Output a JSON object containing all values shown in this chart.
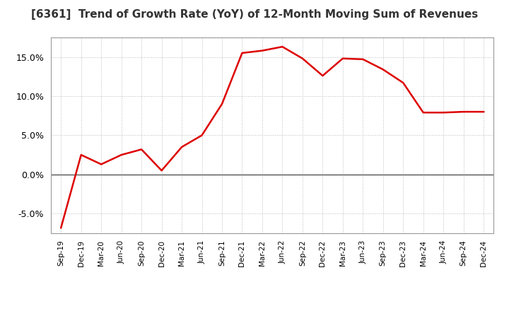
{
  "title": "[6361]  Trend of Growth Rate (YoY) of 12-Month Moving Sum of Revenues",
  "title_fontsize": 11,
  "line_color": "#DD0000",
  "line_width": 1.8,
  "background_color": "#FFFFFF",
  "plot_bg_color": "#FFFFFF",
  "grid_color": "#BBBBBB",
  "ylim": [
    -0.075,
    0.175
  ],
  "yticks": [
    -0.05,
    0.0,
    0.05,
    0.1,
    0.15
  ],
  "x_labels": [
    "Sep-19",
    "Dec-19",
    "Mar-20",
    "Jun-20",
    "Sep-20",
    "Dec-20",
    "Mar-21",
    "Jun-21",
    "Sep-21",
    "Dec-21",
    "Mar-22",
    "Jun-22",
    "Sep-22",
    "Dec-22",
    "Mar-23",
    "Jun-23",
    "Sep-23",
    "Dec-23",
    "Mar-24",
    "Jun-24",
    "Sep-24",
    "Dec-24"
  ],
  "values": [
    -0.068,
    0.025,
    0.013,
    0.025,
    0.032,
    0.005,
    0.035,
    0.05,
    0.09,
    0.155,
    0.158,
    0.163,
    0.148,
    0.126,
    0.148,
    0.147,
    0.134,
    0.117,
    0.079,
    0.079,
    0.08,
    0.08
  ]
}
